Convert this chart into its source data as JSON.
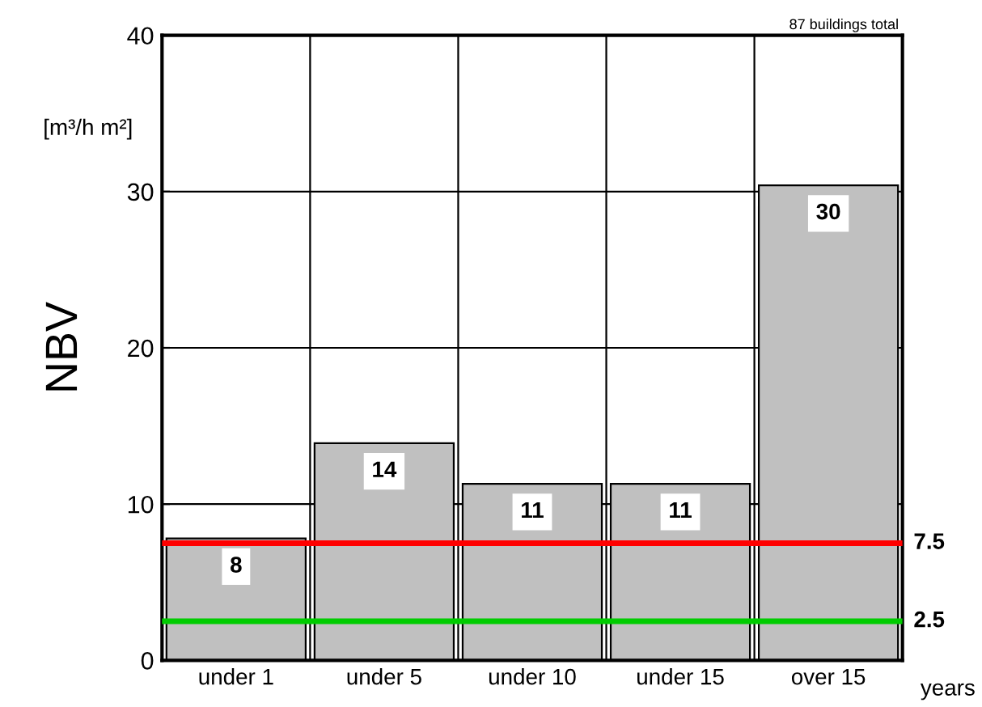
{
  "chart_data": {
    "type": "bar",
    "ylabel": "NBV",
    "xlabel": "years",
    "categories": [
      "under 1",
      "under 5",
      "under 10",
      "under 15",
      "over 15"
    ],
    "values": [
      7.8,
      13.9,
      11.3,
      11.3,
      30.4
    ],
    "value_labels": [
      "8",
      "14",
      "11",
      "11",
      "30"
    ],
    "color": "#c0c0c0",
    "ylim": [
      0,
      40
    ],
    "yticks": [
      0,
      10,
      20,
      30,
      40
    ],
    "grid": true,
    "ref_lines": [
      {
        "axis": "y",
        "value": 7.5,
        "label": "7.5",
        "color": "#ff0000"
      },
      {
        "axis": "y",
        "value": 2.5,
        "label": "2.5",
        "color": "#00cc00"
      }
    ],
    "annotations": [
      "87 buildings total",
      "[m³/h m²]"
    ]
  }
}
